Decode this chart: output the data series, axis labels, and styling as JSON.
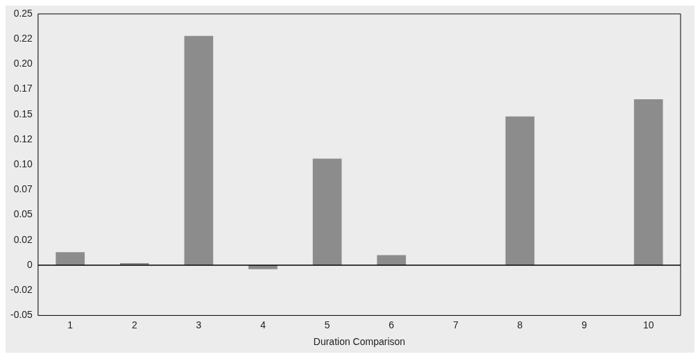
{
  "chart_data": {
    "type": "bar",
    "xlabel": "Duration Comparison",
    "categories": [
      "1",
      "2",
      "3",
      "4",
      "5",
      "6",
      "7",
      "8",
      "9",
      "10"
    ],
    "values": [
      0.013,
      0.002,
      0.228,
      -0.004,
      0.106,
      0.01,
      0,
      0.148,
      0,
      0.165
    ],
    "color": "#8c8c8c",
    "ylim": [
      -0.05,
      0.25
    ],
    "yticks": [
      {
        "value": -0.05,
        "label": "-0.05"
      },
      {
        "value": -0.025,
        "label": "-0.02"
      },
      0,
      {
        "value": 0.025,
        "label": "0.02"
      },
      {
        "value": 0.05,
        "label": "0.05"
      },
      {
        "value": 0.075,
        "label": "0.07"
      },
      {
        "value": 0.1,
        "label": "0.10"
      },
      {
        "value": 0.125,
        "label": "0.12"
      },
      {
        "value": 0.15,
        "label": "0.15"
      },
      {
        "value": 0.175,
        "label": "0.17"
      },
      {
        "value": 0.2,
        "label": "0.20"
      },
      {
        "value": 0.225,
        "label": "0.22"
      },
      {
        "value": 0.25,
        "label": "0.25"
      }
    ],
    "ref_lines": [
      {
        "axis": "y",
        "value": 0,
        "color": "#000000"
      }
    ],
    "grid": false,
    "legend": false
  }
}
